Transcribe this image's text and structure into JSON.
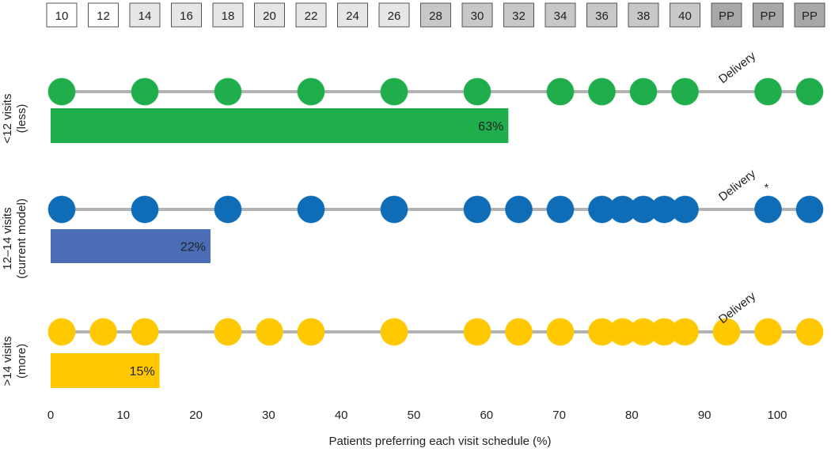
{
  "chart_data": {
    "type": "bar",
    "week_labels": [
      "10",
      "12",
      "14",
      "16",
      "18",
      "20",
      "22",
      "24",
      "26",
      "28",
      "30",
      "32",
      "34",
      "36",
      "38",
      "40",
      "PP",
      "PP",
      "PP"
    ],
    "week_label_shades": [
      "#ffffff",
      "#ffffff",
      "#e6e6e6",
      "#e6e6e6",
      "#e6e6e6",
      "#e6e6e6",
      "#e6e6e6",
      "#e6e6e6",
      "#e6e6e6",
      "#c8c8c8",
      "#c8c8c8",
      "#c8c8c8",
      "#c8c8c8",
      "#c8c8c8",
      "#c8c8c8",
      "#c8c8c8",
      "#a8a8a8",
      "#a8a8a8",
      "#a8a8a8"
    ],
    "categories": [
      ">14 visits (more)",
      "12–14 visits (current model)",
      "<12 visits (less)"
    ],
    "rows": [
      {
        "label_line1": "<12 visits",
        "label_line2": "(less)",
        "color": "#1fae4b",
        "value": 63,
        "value_label": "63%",
        "visit_columns": [
          0,
          2,
          4,
          6,
          8,
          10,
          12,
          13,
          14,
          15,
          17,
          18
        ],
        "delivery_label": "Delivery",
        "delivery_column": 16,
        "marker": ""
      },
      {
        "label_line1": "12–14 visits",
        "label_line2": "(current model)",
        "color": "#0f6cb6",
        "bar_color": "#4a6db5",
        "value": 22,
        "value_label": "22%",
        "visit_columns": [
          0,
          2,
          4,
          6,
          8,
          10,
          11,
          12,
          13,
          13.5,
          14,
          14.5,
          15,
          17,
          18
        ],
        "delivery_label": "Delivery",
        "delivery_column": 16,
        "marker": "*"
      },
      {
        "label_line1": ">14 visits",
        "label_line2": "(more)",
        "color": "#ffc800",
        "value": 15,
        "value_label": "15%",
        "visit_columns": [
          0,
          1,
          2,
          4,
          5,
          6,
          8,
          10,
          11,
          12,
          13,
          13.5,
          14,
          14.5,
          15,
          16,
          17,
          18
        ],
        "delivery_label": "Delivery",
        "delivery_column": 16,
        "marker": ""
      }
    ],
    "x_ticks": [
      0,
      10,
      20,
      30,
      40,
      50,
      60,
      70,
      80,
      90,
      100
    ],
    "xlim": [
      0,
      100
    ],
    "xlabel": "Patients preferring each visit schedule (%)",
    "grid": false
  }
}
